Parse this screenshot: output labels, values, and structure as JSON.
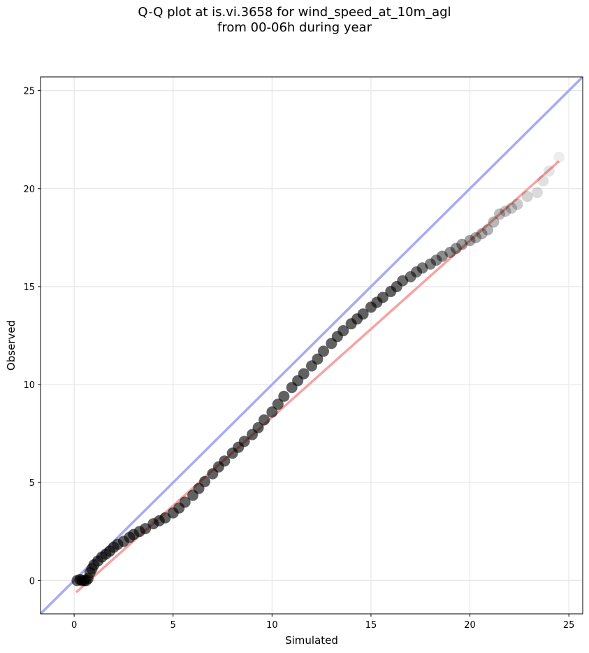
{
  "chart_data": {
    "type": "scatter",
    "title": "Q-Q plot at is.vi.3658 for wind_speed_at_10m_agl",
    "subtitle": "from 00-06h during year",
    "xlabel": "Simulated",
    "ylabel": "Observed",
    "xlim": [
      -1.7,
      25.7
    ],
    "ylim": [
      -1.7,
      25.7
    ],
    "x_ticks": [
      0,
      5,
      10,
      15,
      20,
      25
    ],
    "y_ticks": [
      0,
      5,
      10,
      15,
      20,
      25
    ],
    "grid": true,
    "reference_line": {
      "color": "#a8aaf5",
      "points": [
        [
          -1.7,
          -1.7
        ],
        [
          25.7,
          25.7
        ]
      ]
    },
    "fit_line": {
      "color": "#f5a3a3",
      "points": [
        [
          0.1,
          -0.6
        ],
        [
          24.5,
          21.4
        ]
      ]
    },
    "quantile_points": {
      "color": "#000000",
      "x": [
        0.15,
        0.3,
        0.4,
        0.5,
        0.6,
        0.7,
        0.8,
        0.9,
        1.0,
        1.2,
        1.4,
        1.6,
        1.8,
        2.0,
        2.2,
        2.5,
        2.8,
        3.0,
        3.3,
        3.6,
        4.0,
        4.3,
        4.6,
        5.0,
        5.3,
        5.6,
        6.0,
        6.3,
        6.6,
        7.0,
        7.3,
        7.6,
        8.0,
        8.3,
        8.6,
        9.0,
        9.3,
        9.6,
        10.0,
        10.3,
        10.6,
        11.0,
        11.3,
        11.6,
        12.0,
        12.3,
        12.6,
        13.0,
        13.3,
        13.6,
        14.0,
        14.3,
        14.6,
        15.0,
        15.3,
        15.6,
        16.0,
        16.3,
        16.6,
        17.0,
        17.3,
        17.6,
        18.0,
        18.3,
        18.6,
        19.0,
        19.3,
        19.6,
        20.0,
        20.3,
        20.6,
        20.9,
        21.2,
        21.5,
        21.8,
        22.1,
        22.4,
        22.9,
        23.4,
        23.7,
        24.0,
        24.5
      ],
      "y": [
        0.0,
        0.05,
        0.0,
        0.0,
        0.0,
        0.1,
        0.4,
        0.6,
        0.8,
        1.0,
        1.2,
        1.35,
        1.5,
        1.7,
        1.85,
        2.0,
        2.2,
        2.35,
        2.5,
        2.65,
        2.9,
        3.05,
        3.2,
        3.45,
        3.7,
        4.0,
        4.35,
        4.7,
        5.05,
        5.45,
        5.8,
        6.1,
        6.5,
        6.8,
        7.1,
        7.45,
        7.8,
        8.2,
        8.6,
        9.0,
        9.4,
        9.85,
        10.2,
        10.55,
        10.95,
        11.3,
        11.7,
        12.1,
        12.45,
        12.75,
        13.1,
        13.35,
        13.6,
        13.95,
        14.2,
        14.45,
        14.75,
        15.0,
        15.3,
        15.5,
        15.75,
        15.95,
        16.15,
        16.35,
        16.55,
        16.75,
        16.95,
        17.15,
        17.35,
        17.5,
        17.7,
        17.9,
        18.3,
        18.7,
        18.85,
        19.0,
        19.2,
        19.6,
        19.8,
        20.4,
        20.9,
        21.6
      ]
    }
  }
}
